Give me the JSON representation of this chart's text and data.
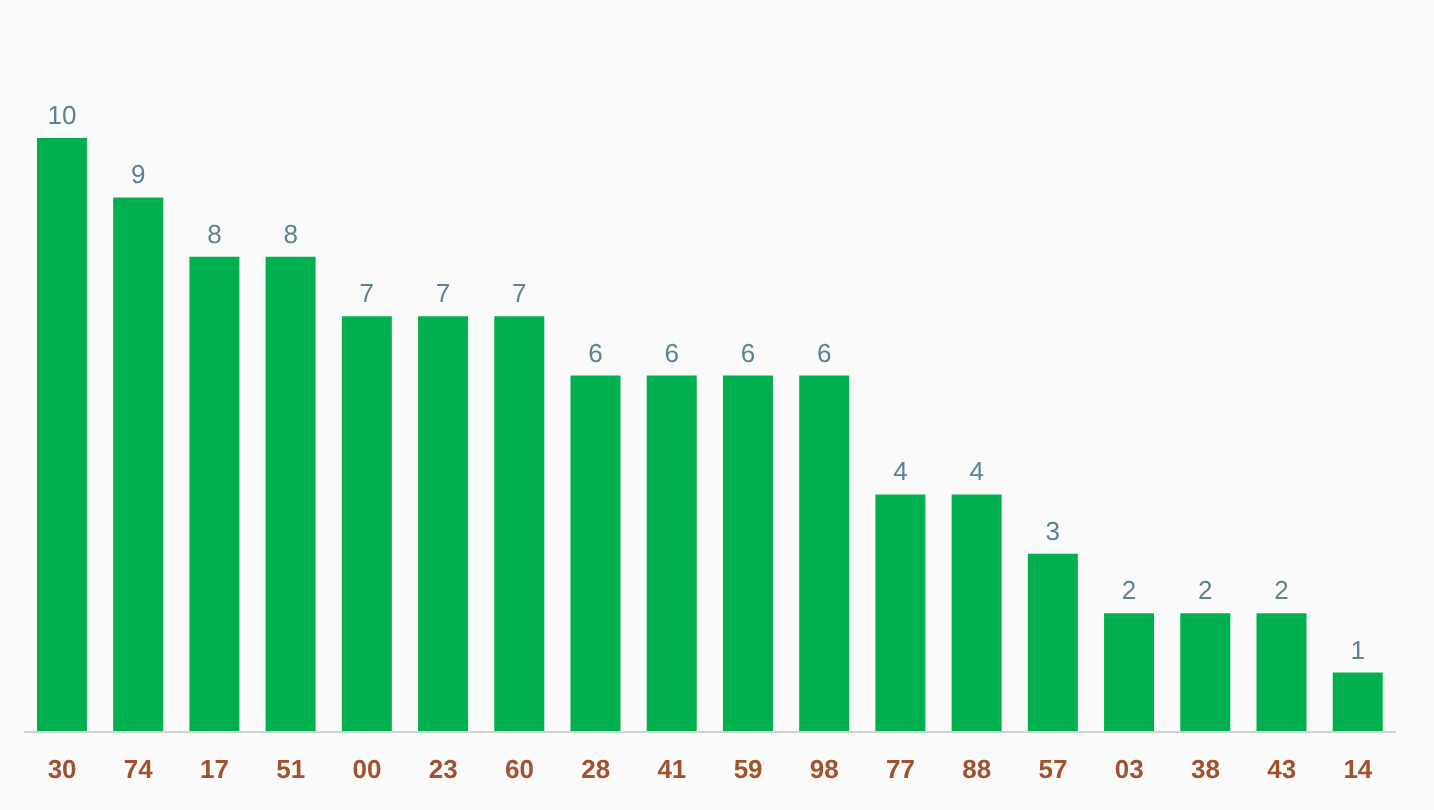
{
  "chart_data": {
    "type": "bar",
    "categories": [
      "30",
      "74",
      "17",
      "51",
      "00",
      "23",
      "60",
      "28",
      "41",
      "59",
      "98",
      "77",
      "88",
      "57",
      "03",
      "38",
      "43",
      "14"
    ],
    "values": [
      10,
      9,
      8,
      8,
      7,
      7,
      7,
      6,
      6,
      6,
      6,
      4,
      4,
      3,
      2,
      2,
      2,
      1
    ],
    "color": "#00b04f",
    "data_labels": true
  }
}
